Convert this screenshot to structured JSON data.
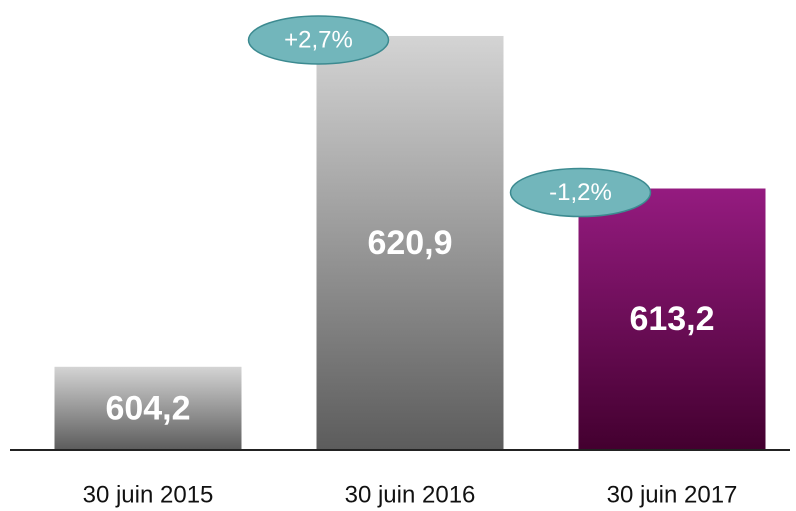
{
  "chart_data": {
    "type": "bar",
    "categories": [
      "30 juin 2015",
      "30 juin 2016",
      "30 juin 2017"
    ],
    "values": [
      604.2,
      620.9,
      613.2
    ],
    "value_labels": [
      "604,2",
      "620,9",
      "613,2"
    ],
    "colors": [
      [
        "#d4d4d4",
        "#5c5c5c"
      ],
      [
        "#d4d4d4",
        "#5c5c5c"
      ],
      [
        "#951b80",
        "#43002f"
      ]
    ],
    "annotations": [
      "+2,7%",
      "-1,2%"
    ],
    "ylim": [
      600,
      621
    ]
  }
}
